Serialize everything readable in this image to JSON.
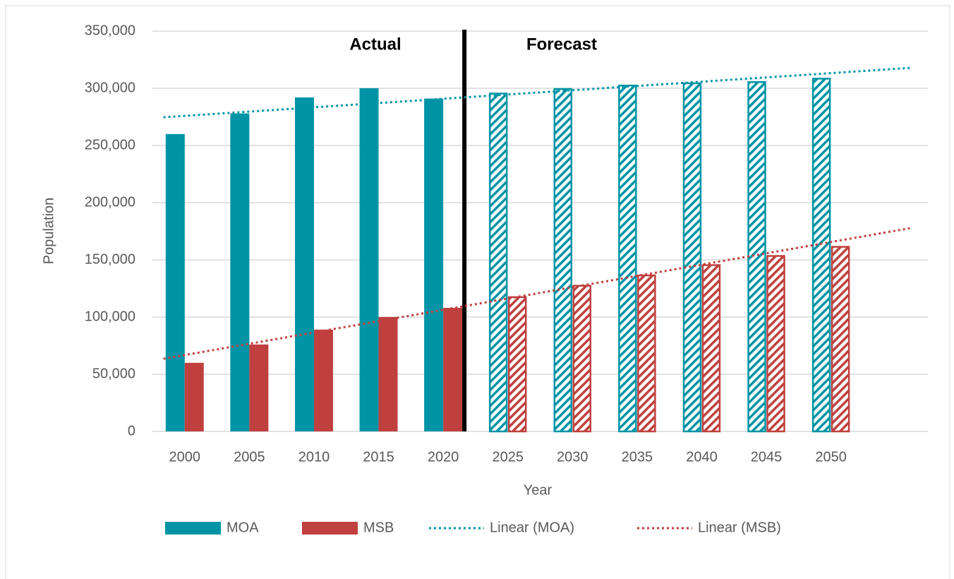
{
  "chart_data": {
    "type": "bar",
    "categories": [
      "2000",
      "2005",
      "2010",
      "2015",
      "2020",
      "2025",
      "2030",
      "2035",
      "2040",
      "2045",
      "2050"
    ],
    "series": [
      {
        "name": "MOA",
        "color": "#0094a6",
        "values": [
          260000,
          278000,
          292000,
          300000,
          291000,
          296000,
          300000,
          303000,
          305000,
          306000,
          309000
        ]
      },
      {
        "name": "MSB",
        "color": "#c0403f",
        "values": [
          60000,
          76000,
          89000,
          100000,
          108000,
          118000,
          128000,
          137000,
          146000,
          154000,
          162000
        ]
      }
    ],
    "trendlines": [
      {
        "name": "Linear (MOA)",
        "color": "#0094a6",
        "of": "MOA"
      },
      {
        "name": "Linear (MSB)",
        "color": "#c0403f",
        "of": "MSB"
      }
    ],
    "forecast_from": "2025",
    "annotations": [
      "Actual",
      "Forecast"
    ],
    "x_label": "Year",
    "y_label": "Population",
    "ylim": [
      0,
      350000
    ],
    "yticks": [
      0,
      {
        "value": 50000,
        "label": "50,000"
      },
      {
        "value": 100000,
        "label": "100,000"
      },
      {
        "value": 150000,
        "label": "150,000"
      },
      {
        "value": 200000,
        "label": "200,000"
      },
      {
        "value": 250000,
        "label": "250,000"
      },
      {
        "value": 300000,
        "label": "300,000"
      },
      {
        "value": 350000,
        "label": "350,000"
      }
    ],
    "grid": true,
    "legend": "bottom"
  }
}
